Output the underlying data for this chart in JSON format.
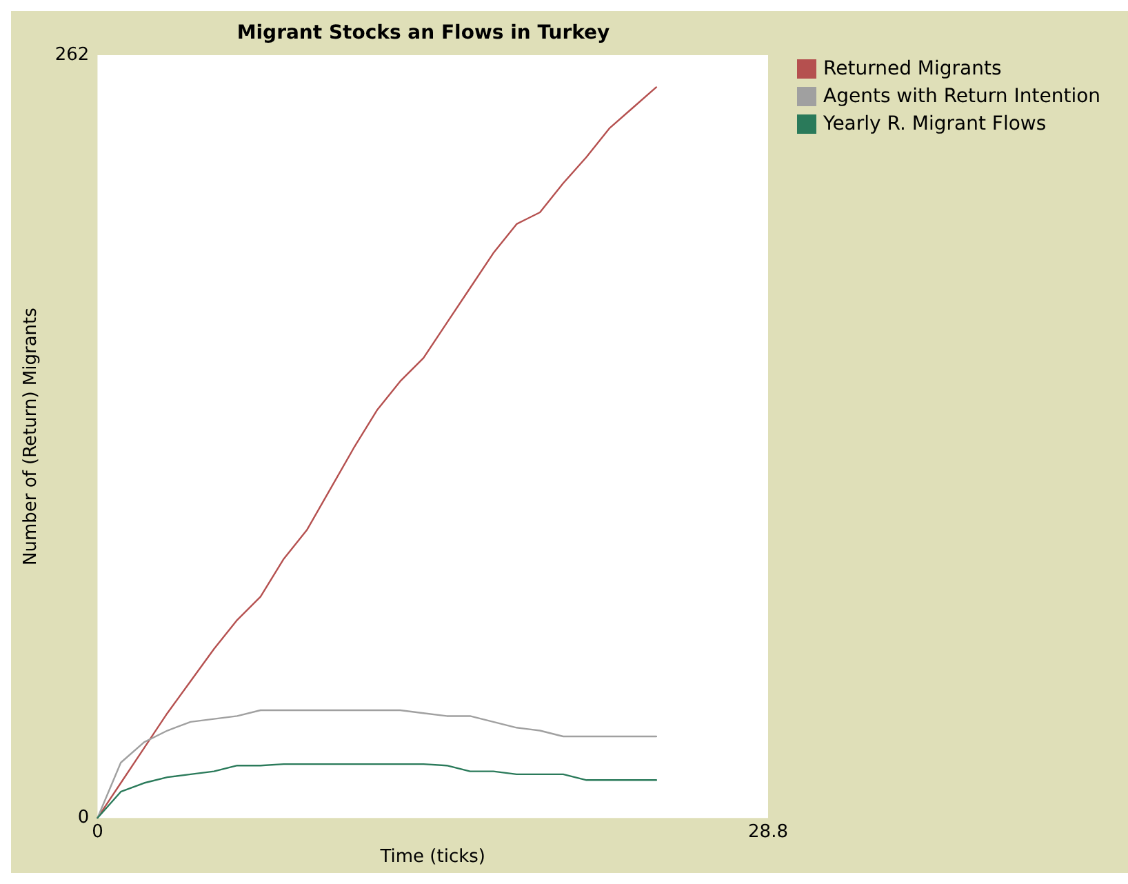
{
  "chart_data": {
    "type": "line",
    "title": "Migrant Stocks an Flows in Turkey",
    "xlabel": "Time (ticks)",
    "ylabel": "Number of (Return) Migrants",
    "x": [
      0,
      1,
      2,
      3,
      4,
      5,
      6,
      7,
      8,
      9,
      10,
      11,
      12,
      13,
      14,
      15,
      16,
      17,
      18,
      19,
      20,
      21,
      22,
      23,
      24
    ],
    "xlim": [
      0,
      28.8
    ],
    "xticks": [
      0,
      28.8
    ],
    "ylim": [
      0,
      262
    ],
    "yticks": [
      0,
      262
    ],
    "series": [
      {
        "name": "Returned Migrants",
        "color": "#b5504f",
        "values": [
          0,
          12,
          24,
          36,
          47,
          58,
          68,
          76,
          89,
          99,
          113,
          127,
          140,
          150,
          158,
          170,
          182,
          194,
          204,
          208,
          218,
          227,
          237,
          244,
          251
        ]
      },
      {
        "name": "Agents with Return Intention",
        "color": "#a0a0a0",
        "values": [
          0,
          19,
          26,
          30,
          33,
          34,
          35,
          37,
          37,
          37,
          37,
          37,
          37,
          37,
          36,
          35,
          35,
          33,
          31,
          30,
          28,
          28,
          28,
          28,
          28
        ]
      },
      {
        "name": "Yearly R. Migrant Flows",
        "color": "#2a7a5a",
        "values": [
          0,
          9,
          12,
          14,
          15,
          16,
          18,
          18,
          18.5,
          18.5,
          18.5,
          18.5,
          18.5,
          18.5,
          18.5,
          18,
          16,
          16,
          15,
          15,
          15,
          13,
          13,
          13,
          13
        ]
      }
    ],
    "grid": false,
    "legend": "right",
    "marker": "none",
    "line_style": "solid"
  }
}
